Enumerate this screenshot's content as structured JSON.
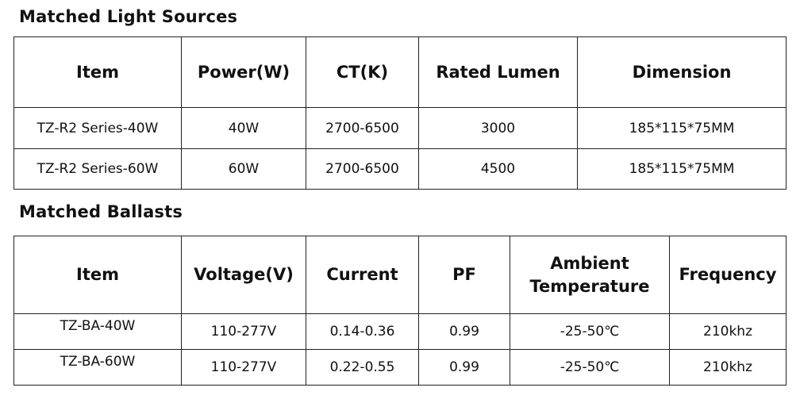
{
  "light_sources": {
    "title": "Matched Light Sources",
    "headers": [
      "Item",
      "Power(W)",
      "CT(K)",
      "Rated Lumen",
      "Dimension"
    ],
    "rows": [
      [
        "TZ-R2 Series-40W",
        "40W",
        "2700-6500",
        "3000",
        "185*115*75MM"
      ],
      [
        "TZ-R2 Series-60W",
        "60W",
        "2700-6500",
        "4500",
        "185*115*75MM"
      ]
    ]
  },
  "ballasts": {
    "title": "Matched Ballasts",
    "headers": [
      "Item",
      "Voltage(V)",
      "Current",
      "PF",
      "Ambient Temperature",
      "Frequency"
    ],
    "rows": [
      [
        "TZ-BA-40W",
        "110-277V",
        "0.14-0.36",
        "0.99",
        "-25-50℃",
        "210khz"
      ],
      [
        "TZ-BA-60W",
        "110-277V",
        "0.22-0.55",
        "0.99",
        "-25-50℃",
        "210khz"
      ]
    ]
  }
}
